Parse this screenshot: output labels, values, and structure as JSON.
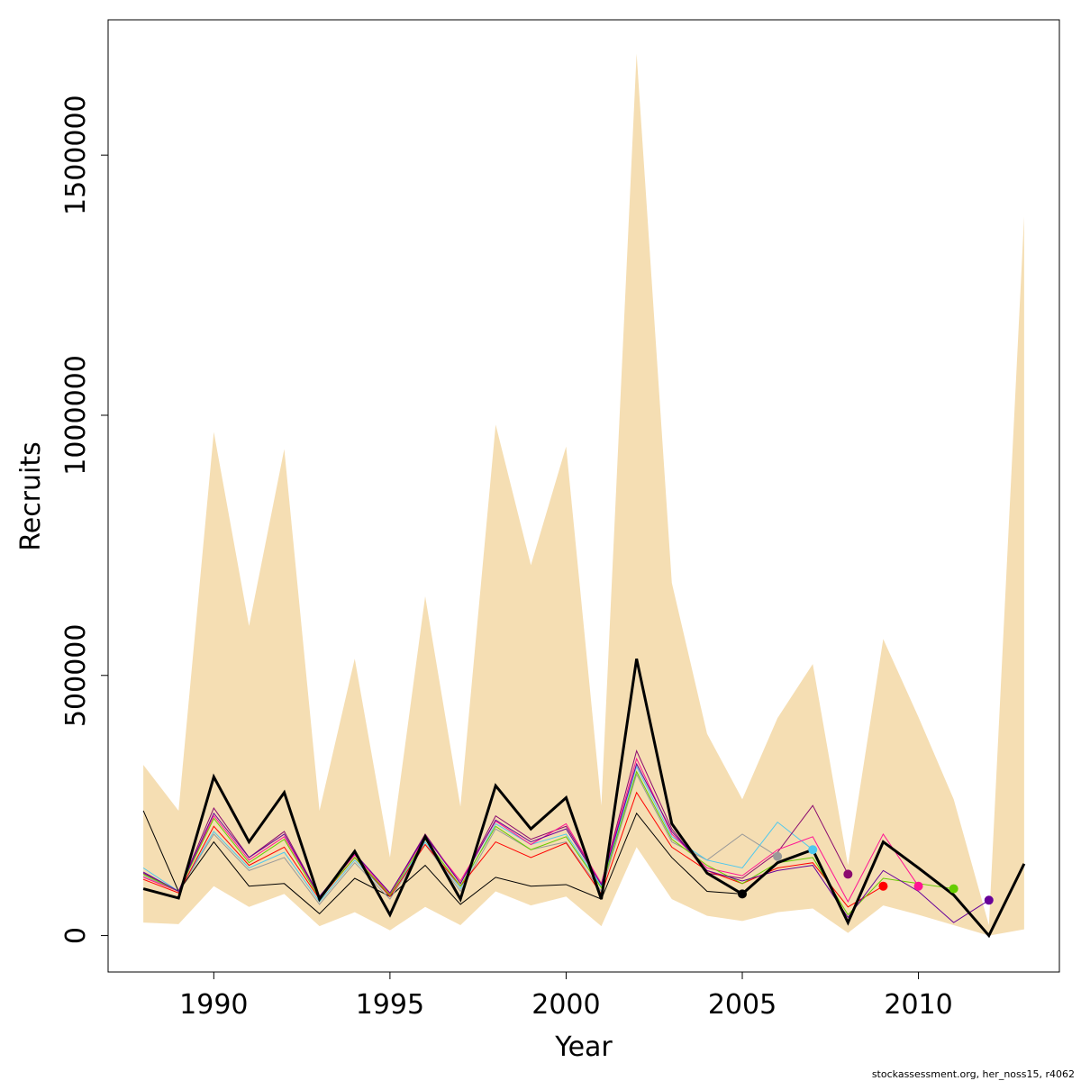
{
  "chart_data": {
    "type": "line",
    "xlabel": "Year",
    "ylabel": "Recruits",
    "credit": "stockassessment.org, her_noss15, r4062",
    "xlim": [
      1987,
      2014
    ],
    "ylim": [
      -70000,
      1760000
    ],
    "x_ticks": [
      1990,
      1995,
      2000,
      2005,
      2010
    ],
    "y_ticks": [
      0,
      500000,
      1000000,
      1500000
    ],
    "y_tick_labels": [
      "0",
      "500000",
      "1000000",
      "1500000"
    ],
    "grid": false,
    "legend": "none",
    "band_color": "#f5deb3",
    "confidence_band": {
      "x": [
        1988,
        1989,
        1990,
        1991,
        1992,
        1993,
        1994,
        1995,
        1996,
        1997,
        1998,
        1999,
        2000,
        2001,
        2002,
        2003,
        2004,
        2005,
        2006,
        2007,
        2008,
        2009,
        2010,
        2011,
        2012,
        2013
      ],
      "lower": [
        25000,
        22000,
        95000,
        55000,
        80000,
        18000,
        45000,
        10000,
        55000,
        20000,
        85000,
        58000,
        75000,
        18000,
        170000,
        70000,
        38000,
        28000,
        45000,
        52000,
        5000,
        58000,
        40000,
        20000,
        0,
        12000
      ],
      "upper": [
        328000,
        240000,
        968000,
        595000,
        935000,
        240000,
        532000,
        150000,
        652000,
        248000,
        982000,
        712000,
        940000,
        250000,
        1695000,
        678000,
        388000,
        262000,
        418000,
        522000,
        135000,
        570000,
        420000,
        262000,
        20000,
        1382000
      ]
    },
    "series": [
      {
        "color": "#000000",
        "width": 3,
        "x": [
          1988,
          1989,
          1990,
          1991,
          1992,
          1993,
          1994,
          1995,
          1996,
          1997,
          1998,
          1999,
          2000,
          2001,
          2002,
          2003,
          2004,
          2005,
          2006,
          2007,
          2008,
          2009,
          2010,
          2011,
          2012,
          2013
        ],
        "values": [
          90000,
          72000,
          305000,
          180000,
          275000,
          70000,
          162000,
          40000,
          190000,
          70000,
          288000,
          205000,
          265000,
          70000,
          532000,
          215000,
          120000,
          80000,
          140000,
          165000,
          25000,
          180000,
          130000,
          78000,
          0,
          138000
        ]
      },
      {
        "color": "#000000",
        "width": 1,
        "x": [
          1988,
          1989,
          1990,
          1991,
          1992,
          1993,
          1994,
          1995,
          1996,
          1997,
          1998,
          1999,
          2000,
          2001,
          2002,
          2003,
          2004,
          2005
        ],
        "values": [
          240000,
          85000,
          180000,
          95000,
          100000,
          42000,
          110000,
          75000,
          135000,
          60000,
          112000,
          95000,
          98000,
          70000,
          235000,
          150000,
          85000,
          80000
        ],
        "point": {
          "x": 2005,
          "y": 80000,
          "color": "#000000"
        }
      },
      {
        "color": "#999999",
        "width": 1,
        "x": [
          1988,
          1989,
          1990,
          1991,
          1992,
          1993,
          1994,
          1995,
          1996,
          1997,
          1998,
          1999,
          2000,
          2001,
          2002,
          2003,
          2004,
          2005,
          2006
        ],
        "values": [
          115000,
          85000,
          195000,
          125000,
          150000,
          60000,
          140000,
          70000,
          175000,
          85000,
          205000,
          165000,
          180000,
          85000,
          310000,
          180000,
          145000,
          195000,
          152000
        ],
        "point": {
          "x": 2006,
          "y": 152000,
          "color": "#999999"
        }
      },
      {
        "color": "#4ec8ee",
        "width": 1,
        "x": [
          1988,
          1989,
          1990,
          1991,
          1992,
          1993,
          1994,
          1995,
          1996,
          1997,
          1998,
          1999,
          2000,
          2001,
          2002,
          2003,
          2004,
          2005,
          2006,
          2007
        ],
        "values": [
          130000,
          85000,
          200000,
          130000,
          160000,
          65000,
          145000,
          75000,
          180000,
          90000,
          215000,
          175000,
          195000,
          95000,
          325000,
          190000,
          145000,
          130000,
          218000,
          165000
        ],
        "point": {
          "x": 2007,
          "y": 165000,
          "color": "#4ec8ee"
        }
      },
      {
        "color": "#8b0a6e",
        "width": 1,
        "x": [
          1988,
          1989,
          1990,
          1991,
          1992,
          1993,
          1994,
          1995,
          1996,
          1997,
          1998,
          1999,
          2000,
          2001,
          2002,
          2003,
          2004,
          2005,
          2006,
          2007,
          2008
        ],
        "values": [
          120000,
          85000,
          245000,
          150000,
          200000,
          75000,
          155000,
          80000,
          195000,
          100000,
          230000,
          185000,
          210000,
          100000,
          355000,
          205000,
          120000,
          110000,
          160000,
          250000,
          118000
        ],
        "point": {
          "x": 2008,
          "y": 118000,
          "color": "#8b0a6e"
        }
      },
      {
        "color": "#ff0000",
        "width": 1,
        "x": [
          1988,
          1989,
          1990,
          1991,
          1992,
          1993,
          1994,
          1995,
          1996,
          1997,
          1998,
          1999,
          2000,
          2001,
          2002,
          2003,
          2004,
          2005,
          2006,
          2007,
          2008,
          2009
        ],
        "values": [
          108000,
          82000,
          210000,
          135000,
          170000,
          70000,
          150000,
          75000,
          175000,
          95000,
          180000,
          150000,
          178000,
          80000,
          275000,
          170000,
          125000,
          100000,
          130000,
          140000,
          55000,
          95000
        ],
        "point": {
          "x": 2009,
          "y": 95000,
          "color": "#ff0000"
        }
      },
      {
        "color": "#ff1493",
        "width": 1,
        "x": [
          1988,
          1989,
          1990,
          1991,
          1992,
          1993,
          1994,
          1995,
          1996,
          1997,
          1998,
          1999,
          2000,
          2001,
          2002,
          2003,
          2004,
          2005,
          2006,
          2007,
          2008,
          2009,
          2010
        ],
        "values": [
          112000,
          85000,
          230000,
          145000,
          190000,
          75000,
          155000,
          80000,
          190000,
          105000,
          220000,
          175000,
          215000,
          100000,
          340000,
          195000,
          130000,
          115000,
          165000,
          190000,
          65000,
          195000,
          95000
        ],
        "point": {
          "x": 2010,
          "y": 95000,
          "color": "#ff1493"
        }
      },
      {
        "color": "#66cc00",
        "width": 1,
        "x": [
          1988,
          1989,
          1990,
          1991,
          1992,
          1993,
          1994,
          1995,
          1996,
          1997,
          1998,
          1999,
          2000,
          2001,
          2002,
          2003,
          2004,
          2005,
          2006,
          2007,
          2008,
          2009,
          2010,
          2011
        ],
        "values": [
          118000,
          85000,
          225000,
          140000,
          185000,
          72000,
          150000,
          78000,
          185000,
          95000,
          210000,
          165000,
          190000,
          92000,
          315000,
          185000,
          135000,
          100000,
          140000,
          150000,
          40000,
          110000,
          100000,
          90000
        ],
        "point": {
          "x": 2011,
          "y": 90000,
          "color": "#66cc00"
        }
      },
      {
        "color": "#660099",
        "width": 1,
        "x": [
          1988,
          1989,
          1990,
          1991,
          1992,
          1993,
          1994,
          1995,
          1996,
          1997,
          1998,
          1999,
          2000,
          2001,
          2002,
          2003,
          2004,
          2005,
          2006,
          2007,
          2008,
          2009,
          2010,
          2011,
          2012
        ],
        "values": [
          122000,
          85000,
          235000,
          150000,
          195000,
          75000,
          158000,
          82000,
          192000,
          100000,
          222000,
          180000,
          205000,
          98000,
          330000,
          200000,
          125000,
          105000,
          125000,
          135000,
          35000,
          125000,
          85000,
          25000,
          68000
        ],
        "point": {
          "x": 2012,
          "y": 68000,
          "color": "#660099"
        }
      }
    ]
  }
}
